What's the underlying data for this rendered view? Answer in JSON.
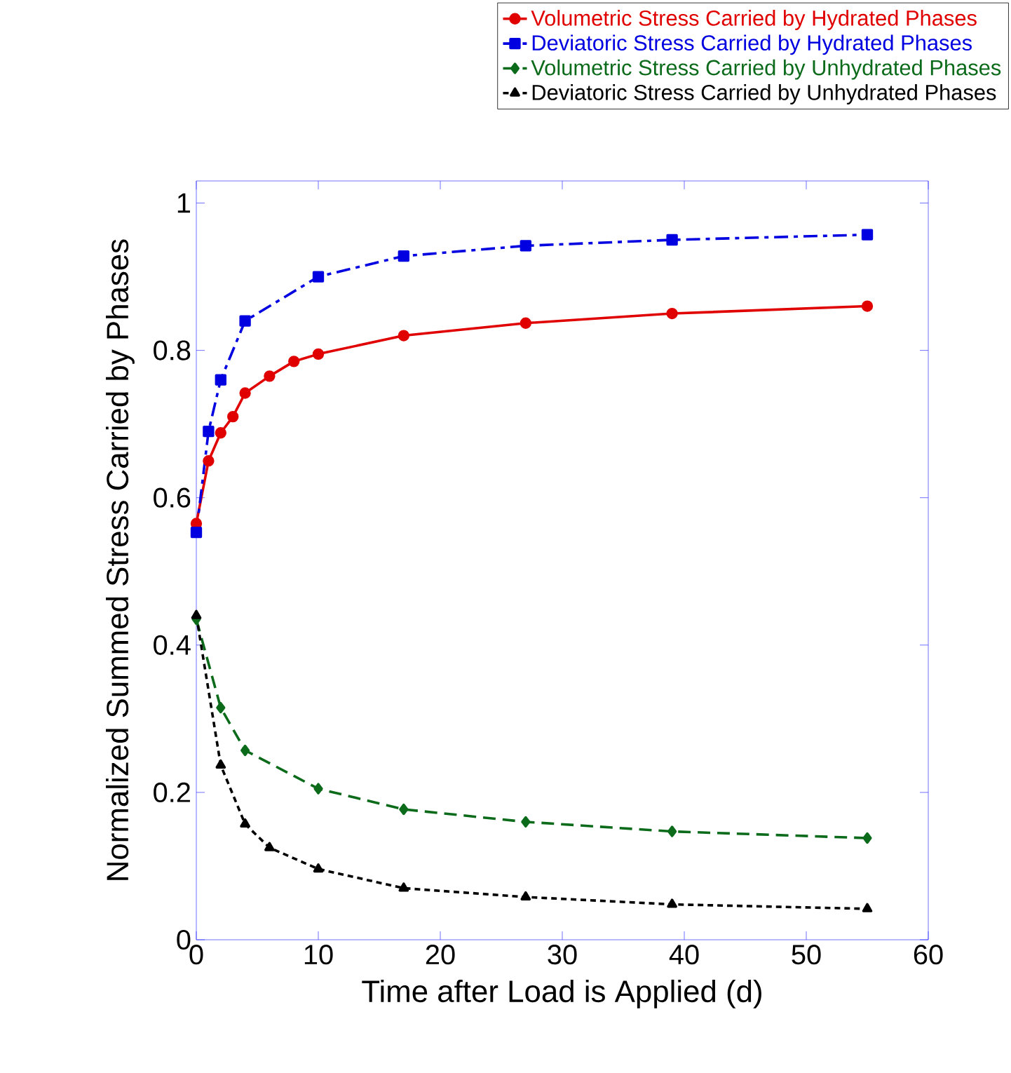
{
  "chart_data": {
    "type": "line",
    "xlabel": "Time after Load is Applied (d)",
    "ylabel": "Normalized Summed Stress Carried by Phases",
    "xlim": [
      0,
      60
    ],
    "ylim": [
      0,
      1.03
    ],
    "xticks": [
      0,
      10,
      20,
      30,
      40,
      50,
      60
    ],
    "yticks": [
      0,
      0.2,
      0.4,
      0.6,
      0.8,
      1
    ],
    "legend": "top right",
    "grid": false,
    "series": [
      {
        "name": "Volumetric Stress Carried by Hydrated Phases",
        "color": "#e00000",
        "marker": "circle",
        "line_style": "solid",
        "x": [
          0,
          1,
          2,
          3,
          4,
          6,
          8,
          10,
          17,
          27,
          39,
          55
        ],
        "values": [
          0.565,
          0.65,
          0.688,
          0.71,
          0.742,
          0.765,
          0.785,
          0.795,
          0.82,
          0.837,
          0.85,
          0.86
        ]
      },
      {
        "name": "Deviatoric Stress Carried by Hydrated Phases",
        "color": "#0000e0",
        "marker": "square",
        "line_style": "dashdot",
        "x": [
          0,
          1,
          2,
          4,
          10,
          17,
          27,
          39,
          55
        ],
        "values": [
          0.553,
          0.69,
          0.76,
          0.84,
          0.9,
          0.928,
          0.942,
          0.95,
          0.957
        ]
      },
      {
        "name": "Volumetric Stress Carried by Unhydrated Phases",
        "color": "#0b6b1a",
        "marker": "diamond",
        "line_style": "dashed",
        "x": [
          0,
          2,
          4,
          10,
          17,
          27,
          39,
          55
        ],
        "values": [
          0.435,
          0.315,
          0.257,
          0.205,
          0.177,
          0.16,
          0.147,
          0.138
        ]
      },
      {
        "name": "Deviatoric Stress Carried by Unhydrated Phases",
        "color": "#000000",
        "marker": "triangle",
        "line_style": "dotted",
        "x": [
          0,
          2,
          4,
          6,
          10,
          17,
          27,
          39,
          55
        ],
        "values": [
          0.44,
          0.237,
          0.157,
          0.125,
          0.096,
          0.07,
          0.058,
          0.048,
          0.042
        ]
      }
    ]
  }
}
